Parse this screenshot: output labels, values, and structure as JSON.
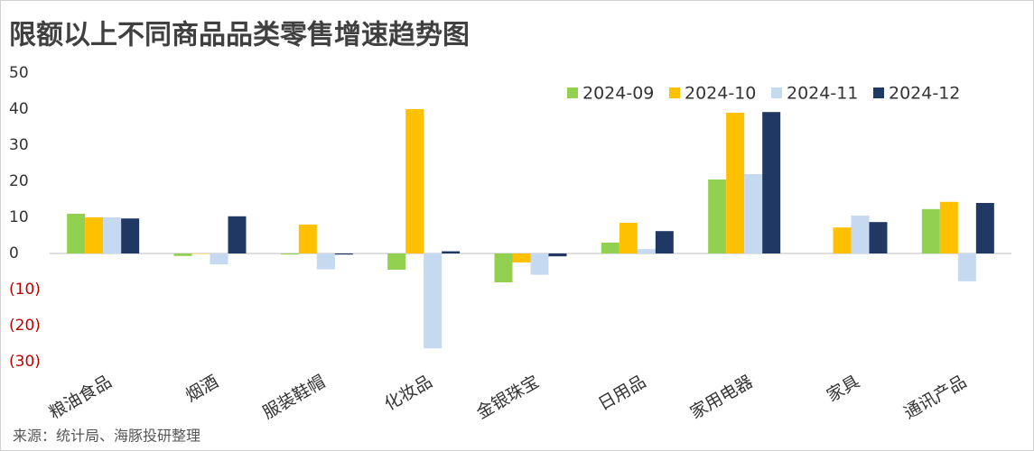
{
  "chart_data": {
    "type": "bar",
    "title": "限额以上不同商品品类零售增速趋势图",
    "source": "来源：统计局、海豚投研整理",
    "categories": [
      "粮油食品",
      "烟酒",
      "服装鞋帽",
      "化妆品",
      "金银珠宝",
      "日用品",
      "家用电器",
      "家具",
      "通讯产品"
    ],
    "series": [
      {
        "name": "2024-09",
        "color": "#92d050",
        "values": [
          11,
          -0.7,
          -0.3,
          -4.5,
          -8,
          3,
          20.5,
          null,
          12.3
        ]
      },
      {
        "name": "2024-10",
        "color": "#ffc000",
        "values": [
          10,
          0,
          8,
          40,
          -2.5,
          8.5,
          39,
          7.2,
          14.3
        ]
      },
      {
        "name": "2024-11",
        "color": "#c5d9f1",
        "values": [
          10,
          -3,
          -4.4,
          -26.3,
          -5.9,
          1.2,
          22,
          10.5,
          -7.7
        ]
      },
      {
        "name": "2024-12",
        "color": "#203864",
        "values": [
          9.7,
          10.3,
          -0.3,
          0.6,
          -0.8,
          6.2,
          39.2,
          8.7,
          14
        ]
      }
    ],
    "ylim": [
      -30,
      50
    ],
    "yticks": [
      50,
      40,
      30,
      20,
      10,
      0,
      {
        "value": -10,
        "label": "(10)"
      },
      {
        "value": -20,
        "label": "(20)"
      },
      {
        "value": -30,
        "label": "(30)"
      }
    ],
    "negative_tick_color": "#c00000",
    "legend": "top-right"
  }
}
